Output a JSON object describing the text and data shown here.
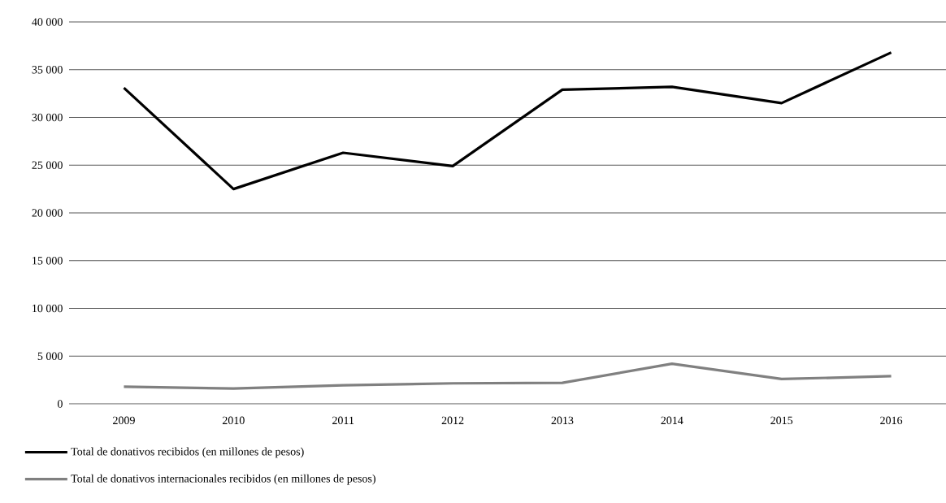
{
  "chart_data": {
    "type": "line",
    "categories": [
      "2009",
      "2010",
      "2011",
      "2012",
      "2013",
      "2014",
      "2015",
      "2016"
    ],
    "series": [
      {
        "name": "Total de donativos recibidos (en millones de pesos)",
        "color": "#000000",
        "values": [
          33100,
          22500,
          26300,
          24900,
          32900,
          33200,
          31500,
          36800
        ]
      },
      {
        "name": "Total de donativos internacionales recibidos (en millones de pesos)",
        "color": "#808080",
        "values": [
          1800,
          1600,
          1950,
          2150,
          2200,
          4200,
          2600,
          2900
        ]
      }
    ],
    "ylim": [
      0,
      40000
    ],
    "yticks": [
      {
        "value": 0,
        "label": "0"
      },
      {
        "value": 5000,
        "label": "5 000"
      },
      {
        "value": 10000,
        "label": "10 000"
      },
      {
        "value": 15000,
        "label": "15 000"
      },
      {
        "value": 20000,
        "label": "20 000"
      },
      {
        "value": 25000,
        "label": "25 000"
      },
      {
        "value": 30000,
        "label": "30 000"
      },
      {
        "value": 35000,
        "label": "35 000"
      },
      {
        "value": 40000,
        "label": "40 000"
      }
    ],
    "grid": "y",
    "legend": "bottom left",
    "marker": "none",
    "line_style": "solid"
  }
}
